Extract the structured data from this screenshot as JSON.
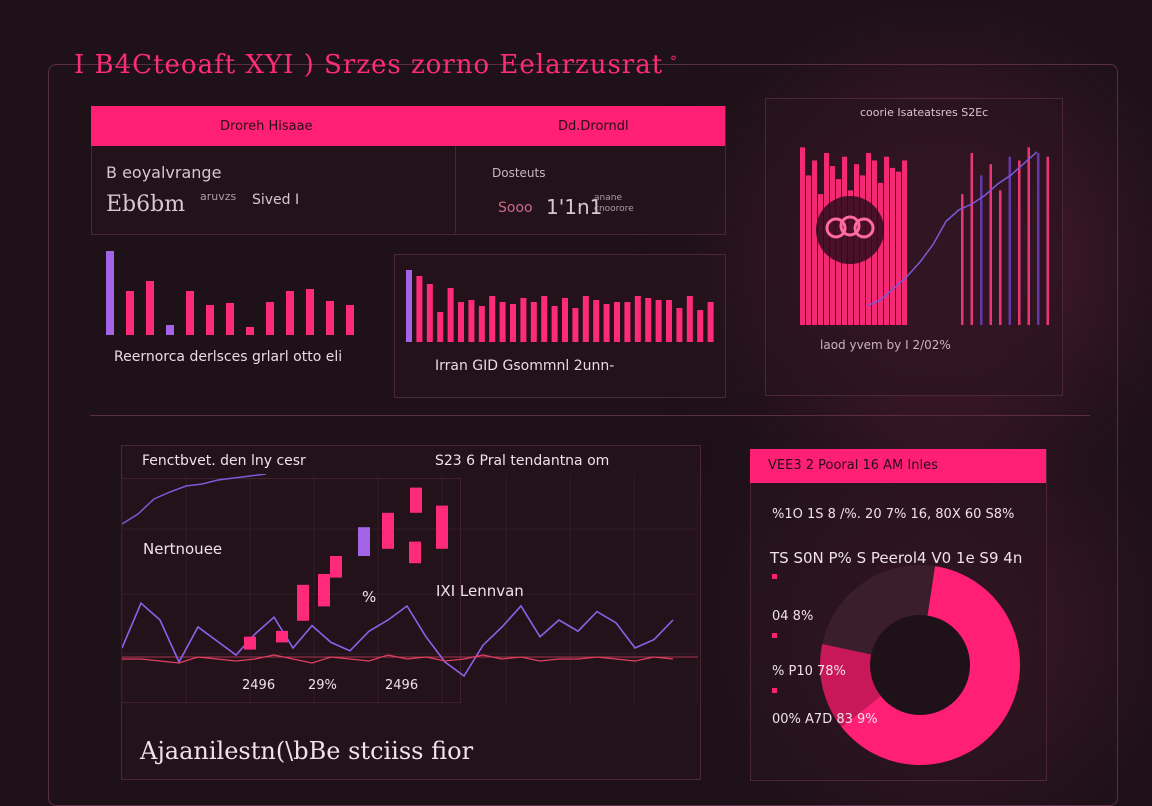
{
  "header": {
    "title": "I B4Cteoaft XYI ) Srzes zorno Eelarzusrat"
  },
  "top_panel": {
    "col1_header": "Droreh Hisaae",
    "col2_header": "Dd.Drorndl",
    "left_label": "B eoyalvrange",
    "left_value": "Eb6bm",
    "left_sub1": "aruvzs",
    "left_sub2": "Sived I",
    "right_label": "Dosteuts",
    "right_value1": "Sooo",
    "right_value2": "1'1n1",
    "right_sub": "anane cnoorore"
  },
  "bars_panel_a": {
    "caption": "Reernorca derlsces grlarl otto eli"
  },
  "bars_panel_b": {
    "caption": "Irran GID Gsommnl 2unn-"
  },
  "right_panel": {
    "title": "coorie Isateatsres S2Ec",
    "caption": "laod yvem by  I 2/02%"
  },
  "bottom_chart": {
    "title_left": "Fenctbvet. den lny cesr",
    "title_right": "S23 6 Pral tendantna om",
    "label_left": "Nertnouee",
    "label_mid": "%",
    "label_right": "IXI Lennvan",
    "axis_tick_1": "2496",
    "axis_tick_2": "29%",
    "axis_tick_3": "2496",
    "footer": "Ajaanilestn(\\bBe stciiss fior"
  },
  "stats_panel": {
    "header": "VEE3 2 Pooral 16 AM Inles",
    "rows": [
      "%1O 1S 8 /%. 20 7% 16, 80X 60 S8%",
      "TS S0N P% S Peerol4 V0 1e S9 4n",
      "04 8%",
      "% P10 78%",
      "00% A7D 83 9%"
    ]
  },
  "chart_data": [
    {
      "type": "bar",
      "title": "Reernorca derlsces grlarl otto eli",
      "values": [
        84,
        44,
        54,
        10,
        44,
        30,
        32,
        8,
        33,
        44,
        46,
        34,
        30
      ],
      "colors": [
        "#a464e8",
        "#ff2a7a",
        "#ff2a7a",
        "#a464e8",
        "#ff2a7a",
        "#ff2a7a",
        "#ff2a7a",
        "#ff2a7a",
        "#ff2a7a",
        "#ff2a7a",
        "#ff2a7a",
        "#ff2a7a",
        "#ff2a7a"
      ]
    },
    {
      "type": "bar",
      "title": "Irran GID Gsommnl 2unn-",
      "values": [
        72,
        66,
        58,
        30,
        54,
        40,
        42,
        36,
        46,
        40,
        38,
        44,
        40,
        46,
        36,
        44,
        34,
        46,
        42,
        38,
        40,
        40,
        46,
        44,
        42,
        42,
        34,
        46,
        32,
        40
      ],
      "colors": [
        "#a464e8",
        "#ff2a7a",
        "#ff2a7a",
        "#ff2a7a",
        "#ff2a7a",
        "#ff2a7a",
        "#ff2a7a",
        "#ff2a7a",
        "#ff2a7a",
        "#ff2a7a",
        "#ff2a7a",
        "#ff2a7a",
        "#ff2a7a",
        "#ff2a7a",
        "#ff2a7a",
        "#ff2a7a",
        "#ff2a7a",
        "#ff2a7a",
        "#ff2a7a",
        "#ff2a7a",
        "#ff2a7a",
        "#ff2a7a",
        "#ff2a7a",
        "#ff2a7a",
        "#ff2a7a",
        "#ff2a7a",
        "#ff2a7a",
        "#ff2a7a",
        "#ff2a7a",
        "#ff2a7a"
      ]
    },
    {
      "type": "bar",
      "title": "coorie Isateatsres S2Ec",
      "values": [
        95,
        80,
        88,
        70,
        92,
        85,
        78,
        90,
        72,
        86,
        80,
        92,
        88,
        76,
        90,
        84,
        82,
        88,
        70,
        92,
        80,
        86,
        72,
        90,
        88,
        95,
        92,
        90,
        84,
        88
      ],
      "colors": [
        "#ff2a7a"
      ]
    },
    {
      "type": "line",
      "title": "coorie Isateatsres S2Ec",
      "series": [
        {
          "name": "trend",
          "values": [
            10,
            14,
            22,
            30,
            40,
            52,
            68,
            76,
            80,
            86,
            94,
            100,
            108,
            116
          ]
        }
      ]
    },
    {
      "type": "candlestick",
      "title": "S23 6 Pral tendantna om",
      "candles": [
        {
          "o": 20,
          "c": 38,
          "color": "#ff2a7a"
        },
        {
          "o": 30,
          "c": 46,
          "color": "#ff2a7a"
        },
        {
          "o": 60,
          "c": 110,
          "color": "#ff2a7a"
        },
        {
          "o": 80,
          "c": 125,
          "color": "#ff2a7a"
        },
        {
          "o": 120,
          "c": 150,
          "color": "#ff2a7a"
        },
        {
          "o": 150,
          "c": 190,
          "color": "#a464e8"
        },
        {
          "o": 160,
          "c": 210,
          "color": "#ff2a7a"
        },
        {
          "o": 140,
          "c": 170,
          "color": "#ff2a7a"
        },
        {
          "o": 160,
          "c": 220,
          "color": "#ff2a7a"
        },
        {
          "o": 210,
          "c": 245,
          "color": "#ff2a7a"
        },
        {
          "o": 0,
          "c": 30,
          "color": "#ff2a7a"
        }
      ]
    },
    {
      "type": "line",
      "title": "Fenctbvet. den lny cesr",
      "series": [
        {
          "name": "upper",
          "values": [
            140,
            150,
            165,
            172,
            178,
            180,
            184,
            186,
            188,
            190
          ]
        },
        {
          "name": "wave-purple",
          "values": [
            40,
            72,
            60,
            30,
            55,
            45,
            35,
            50,
            62,
            40,
            56,
            44,
            38,
            52,
            60,
            70,
            48,
            30,
            20,
            42,
            55,
            70,
            48,
            60,
            52,
            66,
            58,
            40,
            46,
            60
          ]
        },
        {
          "name": "wave-red",
          "values": [
            40,
            40,
            38,
            36,
            42,
            40,
            38,
            40,
            44,
            40,
            36,
            42,
            40,
            38,
            44,
            40,
            42,
            38,
            40,
            44,
            40,
            42,
            38,
            40,
            40,
            42,
            40,
            38,
            42,
            40
          ]
        }
      ]
    },
    {
      "type": "pie",
      "title": "VEE3 2 Pooral 16 AM Inles",
      "slices": [
        {
          "name": "main",
          "value": 62,
          "color": "#ff1f74"
        },
        {
          "name": "secondary",
          "value": 14,
          "color": "#c8185a"
        },
        {
          "name": "rest",
          "value": 24,
          "color": "#3a1e2c"
        }
      ]
    }
  ],
  "colors": {
    "accent": "#ff1f74",
    "purple": "#a464e8",
    "bg": "#1e1118"
  }
}
